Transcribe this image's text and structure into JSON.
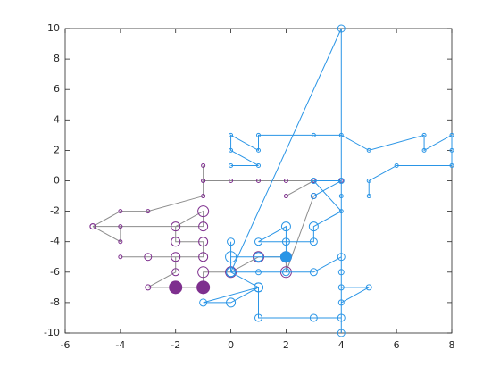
{
  "chart_data": {
    "type": "line",
    "xlim": [
      -6,
      8
    ],
    "ylim": [
      -10,
      10
    ],
    "xticks": [
      -6,
      -4,
      -2,
      0,
      2,
      4,
      6,
      8
    ],
    "yticks": [
      -10,
      -8,
      -6,
      -4,
      -2,
      0,
      2,
      4,
      6,
      8,
      10
    ],
    "series": [
      {
        "color": "#8c8c8c",
        "marker_color": "#7e2f8e",
        "x": [
          -1,
          -1,
          -1,
          -3,
          -4,
          -5,
          -4,
          -4,
          -5,
          -1,
          -1,
          -2,
          -2,
          -1,
          -1,
          -4,
          -3,
          -2,
          -2,
          -3,
          -2,
          -1,
          -1,
          0,
          1,
          2,
          2,
          3,
          2,
          3,
          4,
          3,
          2,
          1,
          0,
          -1
        ],
        "y": [
          1,
          0,
          -1,
          -2,
          -2,
          -3,
          -3,
          -4,
          -3,
          -3,
          -2,
          -3,
          -4,
          -4,
          -5,
          -5,
          -5,
          -5,
          -6,
          -7,
          -7,
          -7,
          -6,
          -6,
          -5,
          -5,
          -6,
          -1,
          -1,
          0,
          0,
          0,
          0,
          0,
          0,
          0
        ],
        "sizes": [
          2,
          2,
          2,
          2,
          2,
          3,
          2,
          2,
          3,
          5,
          6,
          5,
          5,
          5,
          5,
          2,
          4,
          5,
          4,
          3,
          7,
          7,
          6,
          6,
          6,
          6,
          6,
          3,
          2,
          2,
          2,
          2,
          2,
          2,
          2,
          2
        ],
        "filled": [
          false,
          false,
          false,
          false,
          false,
          false,
          false,
          false,
          false,
          false,
          false,
          false,
          false,
          false,
          false,
          false,
          false,
          false,
          false,
          false,
          true,
          true,
          false,
          false,
          false,
          false,
          false,
          false,
          false,
          false,
          false,
          false,
          false,
          false,
          false,
          false
        ]
      },
      {
        "color": "#2a95e6",
        "marker_color": "#2a95e6",
        "x": [
          0,
          1,
          0,
          0,
          1,
          1,
          3,
          4,
          5,
          7,
          7,
          8,
          8,
          8,
          6,
          5,
          5,
          4,
          3,
          4,
          3,
          4,
          3,
          3,
          2,
          1,
          2,
          2,
          1,
          0,
          0,
          0,
          1,
          2,
          3,
          4,
          4,
          4,
          5,
          4,
          4,
          3,
          1,
          1,
          -1,
          0,
          1,
          0,
          4,
          4
        ],
        "y": [
          1,
          1,
          2,
          3,
          2,
          3,
          3,
          3,
          2,
          3,
          2,
          3,
          2,
          1,
          1,
          0,
          -1,
          -1,
          -1,
          0,
          0,
          -2,
          -3,
          -4,
          -4,
          -4,
          -3,
          -5,
          -5,
          -5,
          -4,
          -6,
          -6,
          -6,
          -6,
          -5,
          -6,
          -7,
          -7,
          -8,
          -9,
          -9,
          -9,
          -7,
          -8,
          -8,
          -7,
          -6,
          10,
          -10
        ],
        "sizes": [
          2,
          2,
          2,
          2,
          2,
          2,
          2,
          2,
          2,
          2,
          2,
          2,
          2,
          2,
          2,
          2,
          2,
          2,
          3,
          3,
          3,
          2,
          5,
          4,
          4,
          4,
          5,
          6,
          5,
          6,
          4,
          5,
          3,
          4,
          4,
          4,
          3,
          3,
          3,
          3,
          4,
          4,
          4,
          5,
          4,
          5,
          5,
          5,
          4,
          4
        ],
        "filled": [
          false,
          false,
          false,
          false,
          false,
          false,
          false,
          false,
          false,
          false,
          false,
          false,
          false,
          false,
          false,
          false,
          false,
          false,
          false,
          false,
          false,
          false,
          false,
          false,
          false,
          false,
          false,
          true,
          false,
          false,
          false,
          false,
          false,
          false,
          false,
          false,
          false,
          false,
          false,
          false,
          false,
          false,
          false,
          false,
          false,
          false,
          false,
          false,
          false,
          false
        ]
      }
    ],
    "box": true
  }
}
